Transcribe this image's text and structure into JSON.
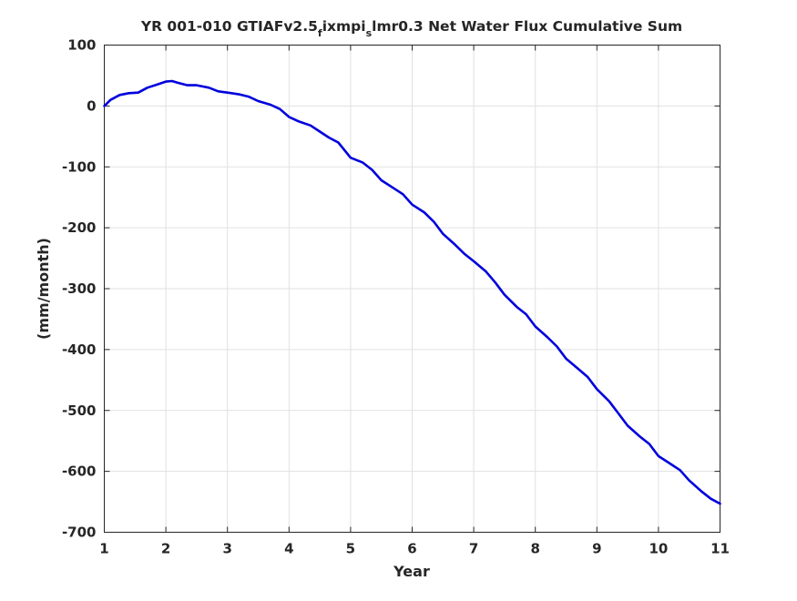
{
  "chart_data": {
    "type": "line",
    "title_parts": {
      "prefix": "YR 001-010 GTIAFv2.5",
      "sub1": "f",
      "mid": "ixmpi",
      "sub2": "s",
      "suffix": "lmr0.3 Net Water Flux Cumulative Sum"
    },
    "xlabel": "Year",
    "ylabel": "(mm/month)",
    "xlim": [
      1,
      11
    ],
    "ylim": [
      -700,
      100
    ],
    "xticks": [
      1,
      2,
      3,
      4,
      5,
      6,
      7,
      8,
      9,
      10,
      11
    ],
    "yticks": [
      100,
      0,
      -100,
      -200,
      -300,
      -400,
      -500,
      -600,
      -700
    ],
    "grid": true,
    "series": [
      {
        "color": "#0000dd",
        "x": [
          1.0,
          1.1,
          1.25,
          1.4,
          1.55,
          1.7,
          1.85,
          2.0,
          2.1,
          2.2,
          2.35,
          2.5,
          2.7,
          2.85,
          3.0,
          3.2,
          3.35,
          3.5,
          3.7,
          3.85,
          4.0,
          4.15,
          4.35,
          4.5,
          4.65,
          4.8,
          5.0,
          5.2,
          5.35,
          5.5,
          5.7,
          5.85,
          6.0,
          6.2,
          6.35,
          6.5,
          6.7,
          6.85,
          7.0,
          7.2,
          7.35,
          7.5,
          7.7,
          7.85,
          8.0,
          8.2,
          8.35,
          8.5,
          8.7,
          8.85,
          9.0,
          9.2,
          9.35,
          9.5,
          9.7,
          9.85,
          10.0,
          10.2,
          10.35,
          10.5,
          10.7,
          10.85,
          11.0
        ],
        "y": [
          0,
          10,
          18,
          21,
          22,
          30,
          35,
          40,
          41,
          38,
          34,
          34,
          30,
          24,
          22,
          19,
          15,
          8,
          2,
          -5,
          -18,
          -25,
          -32,
          -42,
          -52,
          -60,
          -85,
          -93,
          -105,
          -122,
          -135,
          -145,
          -162,
          -175,
          -190,
          -210,
          -228,
          -243,
          -255,
          -272,
          -290,
          -310,
          -330,
          -342,
          -362,
          -380,
          -395,
          -415,
          -432,
          -445,
          -465,
          -485,
          -505,
          -525,
          -543,
          -555,
          -575,
          -588,
          -598,
          -615,
          -633,
          -645,
          -653
        ]
      }
    ]
  }
}
